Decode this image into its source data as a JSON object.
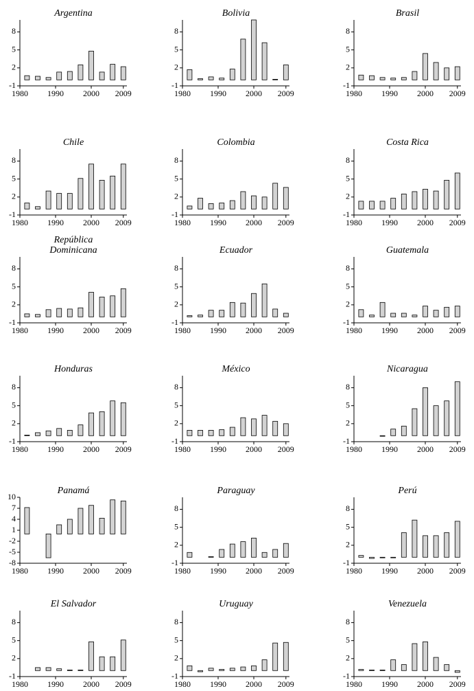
{
  "chart_data": [
    {
      "type": "bar",
      "title": "Argentina",
      "x": [
        1982,
        1985,
        1988,
        1991,
        1994,
        1997,
        2000,
        2003,
        2006,
        2009
      ],
      "values": [
        0.7,
        0.6,
        0.4,
        1.3,
        1.4,
        2.5,
        4.8,
        1.3,
        2.6,
        2.2
      ],
      "color": "#d3d3d3",
      "xlim": [
        1980,
        2010
      ],
      "xticks": [
        1980,
        1990,
        2000,
        2009
      ],
      "ylim": [
        -1,
        10
      ],
      "yticks": [
        -1,
        2,
        5,
        8
      ]
    },
    {
      "type": "bar",
      "title": "Bolivia",
      "x": [
        1982,
        1985,
        1988,
        1991,
        1994,
        1997,
        2000,
        2003,
        2006,
        2009
      ],
      "values": [
        1.7,
        0.2,
        0.5,
        0.3,
        1.8,
        6.8,
        10,
        6.2,
        0.1,
        2.5
      ],
      "color": "#d3d3d3",
      "xlim": [
        1980,
        2010
      ],
      "xticks": [
        1980,
        1990,
        2000,
        2009
      ],
      "ylim": [
        -1,
        10
      ],
      "yticks": [
        -1,
        2,
        5,
        8
      ]
    },
    {
      "type": "bar",
      "title": "Brasil",
      "x": [
        1982,
        1985,
        1988,
        1991,
        1994,
        1997,
        2000,
        2003,
        2006,
        2009
      ],
      "values": [
        0.8,
        0.7,
        0.4,
        0.3,
        0.4,
        1.4,
        4.4,
        2.9,
        2.0,
        2.2
      ],
      "color": "#d3d3d3",
      "xlim": [
        1980,
        2010
      ],
      "xticks": [
        1980,
        1990,
        2000,
        2009
      ],
      "ylim": [
        -1,
        10
      ],
      "yticks": [
        -1,
        2,
        5,
        8
      ]
    },
    {
      "type": "bar",
      "title": "Chile",
      "x": [
        1982,
        1985,
        1988,
        1991,
        1994,
        1997,
        2000,
        2003,
        2006,
        2009
      ],
      "values": [
        1.0,
        0.4,
        3.0,
        2.6,
        2.6,
        5.1,
        7.5,
        4.8,
        5.5,
        7.5
      ],
      "color": "#d3d3d3",
      "xlim": [
        1980,
        2010
      ],
      "xticks": [
        1980,
        1990,
        2000,
        2009
      ],
      "ylim": [
        -1,
        10
      ],
      "yticks": [
        -1,
        2,
        5,
        8
      ]
    },
    {
      "type": "bar",
      "title": "Colombia",
      "x": [
        1982,
        1985,
        1988,
        1991,
        1994,
        1997,
        2000,
        2003,
        2006,
        2009
      ],
      "values": [
        0.5,
        1.8,
        0.9,
        1.0,
        1.4,
        2.9,
        2.2,
        2.0,
        4.3,
        3.6
      ],
      "color": "#d3d3d3",
      "xlim": [
        1980,
        2010
      ],
      "xticks": [
        1980,
        1990,
        2000,
        2009
      ],
      "ylim": [
        -1,
        10
      ],
      "yticks": [
        -1,
        2,
        5,
        8
      ]
    },
    {
      "type": "bar",
      "title": "Costa Rica",
      "x": [
        1982,
        1985,
        1988,
        1991,
        1994,
        1997,
        2000,
        2003,
        2006,
        2009
      ],
      "values": [
        1.3,
        1.3,
        1.3,
        1.8,
        2.5,
        2.9,
        3.3,
        3.0,
        4.8,
        6.0
      ],
      "color": "#d3d3d3",
      "xlim": [
        1980,
        2010
      ],
      "xticks": [
        1980,
        1990,
        2000,
        2009
      ],
      "ylim": [
        -1,
        10
      ],
      "yticks": [
        -1,
        2,
        5,
        8
      ]
    },
    {
      "type": "bar",
      "title": "República Dominicana",
      "x": [
        1982,
        1985,
        1988,
        1991,
        1994,
        1997,
        2000,
        2003,
        2006,
        2009
      ],
      "values": [
        0.5,
        0.4,
        1.2,
        1.4,
        1.3,
        1.5,
        4.1,
        3.3,
        3.5,
        4.7
      ],
      "color": "#d3d3d3",
      "xlim": [
        1980,
        2010
      ],
      "xticks": [
        1980,
        1990,
        2000,
        2009
      ],
      "ylim": [
        -1,
        10
      ],
      "yticks": [
        -1,
        2,
        5,
        8
      ]
    },
    {
      "type": "bar",
      "title": "Ecuador",
      "x": [
        1982,
        1985,
        1988,
        1991,
        1994,
        1997,
        2000,
        2003,
        2006,
        2009
      ],
      "values": [
        0.2,
        0.3,
        1.1,
        1.1,
        2.4,
        2.3,
        3.9,
        5.5,
        1.3,
        0.6
      ],
      "color": "#d3d3d3",
      "xlim": [
        1980,
        2010
      ],
      "xticks": [
        1980,
        1990,
        2000,
        2009
      ],
      "ylim": [
        -1,
        10
      ],
      "yticks": [
        -1,
        2,
        5,
        8
      ]
    },
    {
      "type": "bar",
      "title": "Guatemala",
      "x": [
        1982,
        1985,
        1988,
        1991,
        1994,
        1997,
        2000,
        2003,
        2006,
        2009
      ],
      "values": [
        1.2,
        0.3,
        2.4,
        0.6,
        0.6,
        0.3,
        1.8,
        1.1,
        1.6,
        1.8
      ],
      "color": "#d3d3d3",
      "xlim": [
        1980,
        2010
      ],
      "xticks": [
        1980,
        1990,
        2000,
        2009
      ],
      "ylim": [
        -1,
        10
      ],
      "yticks": [
        -1,
        2,
        5,
        8
      ]
    },
    {
      "type": "bar",
      "title": "Honduras",
      "x": [
        1982,
        1985,
        1988,
        1991,
        1994,
        1997,
        2000,
        2003,
        2006,
        2009
      ],
      "values": [
        0.1,
        0.5,
        0.8,
        1.2,
        0.9,
        1.8,
        3.8,
        4.0,
        5.8,
        5.5
      ],
      "color": "#d3d3d3",
      "xlim": [
        1980,
        2010
      ],
      "xticks": [
        1980,
        1990,
        2000,
        2009
      ],
      "ylim": [
        -1,
        10
      ],
      "yticks": [
        -1,
        2,
        5,
        8
      ]
    },
    {
      "type": "bar",
      "title": "México",
      "x": [
        1982,
        1985,
        1988,
        1991,
        1994,
        1997,
        2000,
        2003,
        2006,
        2009
      ],
      "values": [
        0.9,
        0.9,
        0.9,
        1.0,
        1.4,
        3.0,
        2.8,
        3.4,
        2.4,
        2.0
      ],
      "color": "#d3d3d3",
      "xlim": [
        1980,
        2010
      ],
      "xticks": [
        1980,
        1990,
        2000,
        2009
      ],
      "ylim": [
        -1,
        10
      ],
      "yticks": [
        -1,
        2,
        5,
        8
      ]
    },
    {
      "type": "bar",
      "title": "Nicaragua",
      "x": [
        1982,
        1985,
        1988,
        1991,
        1994,
        1997,
        2000,
        2003,
        2006,
        2009
      ],
      "values": [
        0.0,
        0.0,
        -0.1,
        1.1,
        1.6,
        4.5,
        8.0,
        5.0,
        5.8,
        9.0
      ],
      "color": "#d3d3d3",
      "xlim": [
        1980,
        2010
      ],
      "xticks": [
        1980,
        1990,
        2000,
        2009
      ],
      "ylim": [
        -1,
        10
      ],
      "yticks": [
        -1,
        2,
        5,
        8
      ]
    },
    {
      "type": "bar",
      "title": "Panamá",
      "x": [
        1982,
        1985,
        1988,
        1991,
        1994,
        1997,
        2000,
        2003,
        2006,
        2009
      ],
      "values": [
        7.2,
        0.0,
        -6.5,
        2.5,
        4.0,
        7.0,
        7.8,
        4.3,
        9.3,
        9.0
      ],
      "color": "#d3d3d3",
      "xlim": [
        1980,
        2010
      ],
      "xticks": [
        1980,
        1990,
        2000,
        2009
      ],
      "ylim": [
        -8,
        10
      ],
      "yticks": [
        -8,
        -5,
        -2,
        1,
        4,
        7,
        10
      ]
    },
    {
      "type": "bar",
      "title": "Paraguay",
      "x": [
        1982,
        1985,
        1988,
        1991,
        1994,
        1997,
        2000,
        2003,
        2006,
        2009
      ],
      "values": [
        0.8,
        0.0,
        0.1,
        1.3,
        2.2,
        2.6,
        3.2,
        0.8,
        1.3,
        2.3
      ],
      "color": "#d3d3d3",
      "xlim": [
        1980,
        2010
      ],
      "xticks": [
        1980,
        1990,
        2000,
        2009
      ],
      "ylim": [
        -1,
        10
      ],
      "yticks": [
        -1,
        2,
        5,
        8
      ]
    },
    {
      "type": "bar",
      "title": "Perú",
      "x": [
        1982,
        1985,
        1988,
        1991,
        1994,
        1997,
        2000,
        2003,
        2006,
        2009
      ],
      "values": [
        0.3,
        -0.2,
        -0.1,
        -0.1,
        4.1,
        6.2,
        3.6,
        3.6,
        4.1,
        6.0
      ],
      "color": "#d3d3d3",
      "xlim": [
        1980,
        2010
      ],
      "xticks": [
        1980,
        1990,
        2000,
        2009
      ],
      "ylim": [
        -1,
        10
      ],
      "yticks": [
        -1,
        2,
        5,
        8
      ]
    },
    {
      "type": "bar",
      "title": "El Salvador",
      "x": [
        1982,
        1985,
        1988,
        1991,
        1994,
        1997,
        2000,
        2003,
        2006,
        2009
      ],
      "values": [
        0.0,
        0.5,
        0.5,
        0.3,
        0.1,
        0.1,
        4.8,
        2.3,
        2.3,
        5.1
      ],
      "color": "#d3d3d3",
      "xlim": [
        1980,
        2010
      ],
      "xticks": [
        1980,
        1990,
        2000,
        2009
      ],
      "ylim": [
        -1,
        10
      ],
      "yticks": [
        -1,
        2,
        5,
        8
      ]
    },
    {
      "type": "bar",
      "title": "Uruguay",
      "x": [
        1982,
        1985,
        1988,
        1991,
        1994,
        1997,
        2000,
        2003,
        2006,
        2009
      ],
      "values": [
        0.8,
        -0.2,
        0.4,
        0.2,
        0.4,
        0.6,
        0.8,
        1.8,
        4.6,
        4.7
      ],
      "color": "#d3d3d3",
      "xlim": [
        1980,
        2010
      ],
      "xticks": [
        1980,
        1990,
        2000,
        2009
      ],
      "ylim": [
        -1,
        10
      ],
      "yticks": [
        -1,
        2,
        5,
        8
      ]
    },
    {
      "type": "bar",
      "title": "Venezuela",
      "x": [
        1982,
        1985,
        1988,
        1991,
        1994,
        1997,
        2000,
        2003,
        2006,
        2009
      ],
      "values": [
        0.2,
        0.1,
        0.1,
        1.8,
        1.0,
        4.5,
        4.8,
        2.2,
        1.0,
        -0.3
      ],
      "color": "#d3d3d3",
      "xlim": [
        1980,
        2010
      ],
      "xticks": [
        1980,
        1990,
        2000,
        2009
      ],
      "ylim": [
        -1,
        10
      ],
      "yticks": [
        -1,
        2,
        5,
        8
      ]
    }
  ]
}
